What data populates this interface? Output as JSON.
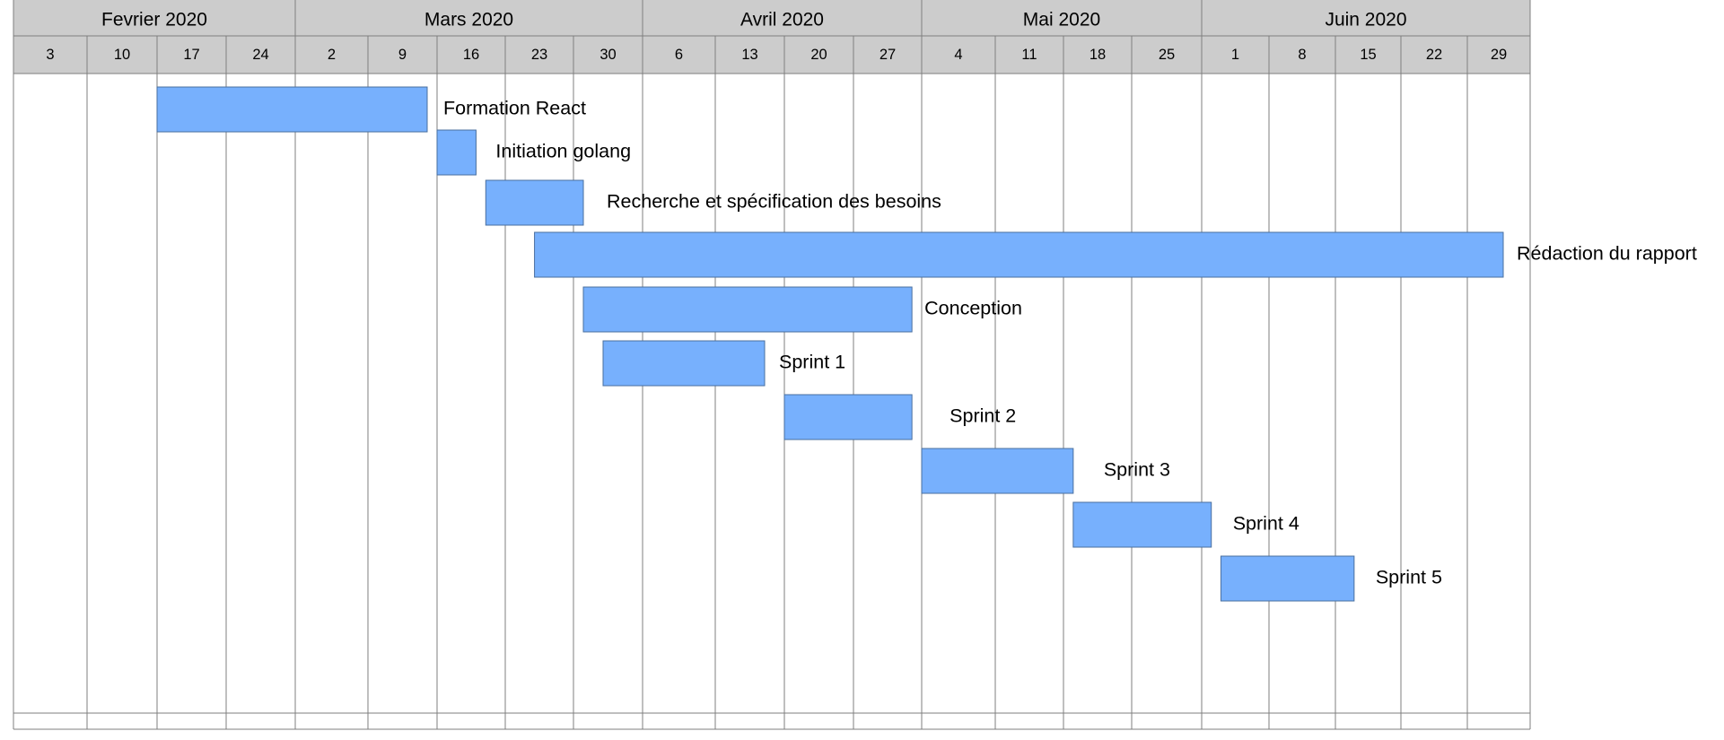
{
  "chart_data": {
    "type": "gantt",
    "months": [
      {
        "label": "Fevrier 2020"
      },
      {
        "label": "Mars 2020"
      },
      {
        "label": "Avril 2020"
      },
      {
        "label": "Mai 2020"
      },
      {
        "label": "Juin 2020"
      }
    ],
    "weeks": [
      {
        "label": "3",
        "month": 0
      },
      {
        "label": "10",
        "month": 0
      },
      {
        "label": "17",
        "month": 0
      },
      {
        "label": "24",
        "month": 0
      },
      {
        "label": "2",
        "month": 1
      },
      {
        "label": "9",
        "month": 1
      },
      {
        "label": "16",
        "month": 1
      },
      {
        "label": "23",
        "month": 1
      },
      {
        "label": "30",
        "month": 1
      },
      {
        "label": "6",
        "month": 2
      },
      {
        "label": "13",
        "month": 2
      },
      {
        "label": "20",
        "month": 2
      },
      {
        "label": "27",
        "month": 2
      },
      {
        "label": "4",
        "month": 3
      },
      {
        "label": "11",
        "month": 3
      },
      {
        "label": "18",
        "month": 3
      },
      {
        "label": "25",
        "month": 3
      },
      {
        "label": "1",
        "month": 4
      },
      {
        "label": "8",
        "month": 4
      },
      {
        "label": "15",
        "month": 4
      },
      {
        "label": "22",
        "month": 4
      },
      {
        "label": "29",
        "month": 4
      }
    ],
    "tasks": [
      {
        "name": "Formation React",
        "start": "2020-02-17",
        "end": "2020-03-15"
      },
      {
        "name": "Initiation golang",
        "start": "2020-03-16",
        "end": "2020-03-20"
      },
      {
        "name": "Recherche et spécification des besoins",
        "start": "2020-03-21",
        "end": "2020-03-31"
      },
      {
        "name": "Rédaction du rapport",
        "start": "2020-03-26",
        "end": "2020-07-03"
      },
      {
        "name": "Conception",
        "start": "2020-03-31",
        "end": "2020-05-03"
      },
      {
        "name": "Sprint 1",
        "start": "2020-04-02",
        "end": "2020-04-18"
      },
      {
        "name": "Sprint 2",
        "start": "2020-04-20",
        "end": "2020-05-03"
      },
      {
        "name": "Sprint 3",
        "start": "2020-05-04",
        "end": "2020-05-19"
      },
      {
        "name": "Sprint 4",
        "start": "2020-05-19",
        "end": "2020-06-02"
      },
      {
        "name": "Sprint 5",
        "start": "2020-06-03",
        "end": "2020-06-17"
      }
    ]
  },
  "colors": {
    "header_bg": "#cccccc",
    "grid_line": "#7f7f7f",
    "bar_fill": "#77b0fd",
    "bar_stroke": "#4a6f9f",
    "text": "#000000"
  }
}
